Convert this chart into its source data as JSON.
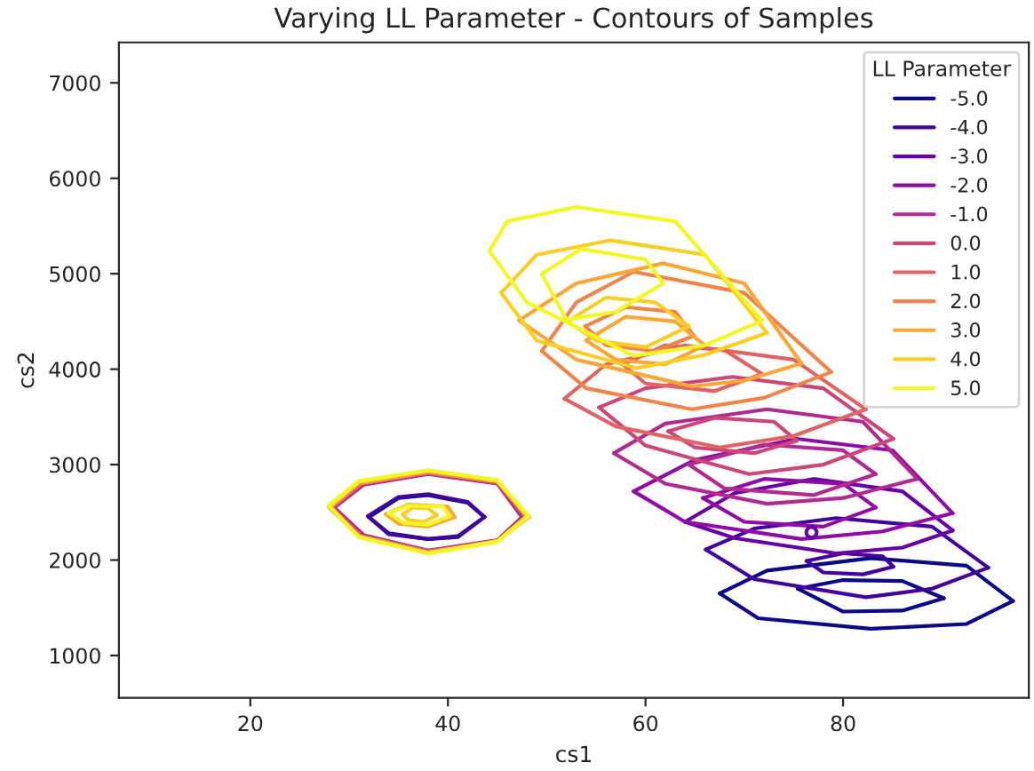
{
  "chart_data": {
    "type": "line",
    "title": "Varying LL Parameter - Contours of Samples",
    "xlabel": "cs1",
    "ylabel": "cs2",
    "legend_title": "LL Parameter",
    "legend": "top right",
    "grid": false,
    "marker": "none",
    "line_style": "solid",
    "xlim": [
      6.7,
      98.8
    ],
    "ylim": [
      557,
      7424
    ],
    "xticks": [
      20,
      40,
      60,
      80
    ],
    "yticks": [
      1000,
      2000,
      3000,
      4000,
      5000,
      6000,
      7000
    ],
    "series": [
      {
        "name": "-5.0",
        "color": "#0d0887",
        "x": [
          67.5,
          72.3,
          82.8,
          92.5,
          97.2
        ],
        "values": [
          1650,
          1890,
          2020,
          1940,
          1570
        ]
      },
      {
        "color": "#0d0887",
        "x": [
          67.5,
          71.4,
          82.8,
          92.5,
          97.2
        ],
        "values": [
          1650,
          1390,
          1280,
          1330,
          1570
        ]
      },
      {
        "color": "#0d0887",
        "x": [
          75.4,
          80,
          86,
          90.2
        ],
        "values": [
          1700,
          1790,
          1780,
          1600
        ]
      },
      {
        "color": "#0d0887",
        "x": [
          75.4,
          80,
          86,
          90.2
        ],
        "values": [
          1700,
          1460,
          1470,
          1600
        ]
      },
      {
        "color": "#0d0887",
        "x": [
          32,
          35,
          38,
          42,
          43.7
        ],
        "values": [
          2450,
          2650,
          2680,
          2600,
          2450
        ]
      },
      {
        "color": "#0d0887",
        "x": [
          32,
          34,
          38,
          41,
          43.7
        ],
        "values": [
          2450,
          2280,
          2220,
          2250,
          2450
        ]
      },
      {
        "name": "-4.0",
        "color": "#41049d",
        "x": [
          66.1,
          71,
          79.3,
          89,
          94.7
        ],
        "values": [
          2110,
          2330,
          2440,
          2350,
          1920
        ]
      },
      {
        "color": "#41049d",
        "x": [
          66.1,
          71,
          82.3,
          89,
          94.7
        ],
        "values": [
          2110,
          1800,
          1610,
          1700,
          1920
        ]
      },
      {
        "color": "#41049d",
        "x": [
          76.3,
          80,
          84,
          85.1
        ],
        "values": [
          1990,
          2070,
          2040,
          1930
        ]
      },
      {
        "color": "#41049d",
        "x": [
          76.3,
          78,
          82,
          85.1
        ],
        "values": [
          1990,
          1870,
          1850,
          1930
        ]
      },
      {
        "color": "#41049d",
        "x": [
          31.9,
          35,
          38,
          42,
          43.7
        ],
        "values": [
          2460,
          2660,
          2690,
          2610,
          2450
        ]
      },
      {
        "color": "#41049d",
        "x": [
          31.9,
          34,
          38,
          41,
          43.7
        ],
        "values": [
          2460,
          2270,
          2220,
          2240,
          2450
        ]
      },
      {
        "name": "-3.0",
        "color": "#6a00a8",
        "x": [
          64,
          69,
          77,
          86,
          91.1
        ],
        "values": [
          2400,
          2700,
          2850,
          2720,
          2310
        ]
      },
      {
        "color": "#6a00a8",
        "x": [
          64,
          69,
          79.3,
          86,
          91.1
        ],
        "values": [
          2400,
          2230,
          2070,
          2130,
          2310
        ]
      },
      {
        "type": "scatter",
        "marker": "circle",
        "color": "#6a00a8",
        "x": [
          76.8
        ],
        "values": [
          2290
        ]
      },
      {
        "name": "-2.0",
        "color": "#8f0da4",
        "x": [
          58.8,
          65,
          75.3,
          85,
          91.1
        ],
        "values": [
          2720,
          3050,
          3270,
          3150,
          2490
        ]
      },
      {
        "color": "#8f0da4",
        "x": [
          58.8,
          64,
          75.8,
          84,
          91.1
        ],
        "values": [
          2720,
          2400,
          2220,
          2300,
          2490
        ]
      },
      {
        "color": "#8f0da4",
        "x": [
          65.8,
          72,
          80,
          83.3
        ],
        "values": [
          2650,
          2850,
          2800,
          2550
        ]
      },
      {
        "color": "#8f0da4",
        "x": [
          65.8,
          70,
          78,
          83.3
        ],
        "values": [
          2650,
          2400,
          2350,
          2550
        ]
      },
      {
        "name": "-1.0",
        "color": "#b12a90",
        "x": [
          56.8,
          62,
          72.3,
          82,
          87.5
        ],
        "values": [
          3120,
          3430,
          3580,
          3450,
          2850
        ]
      },
      {
        "color": "#b12a90",
        "x": [
          56.8,
          62,
          72.3,
          80,
          87.5
        ],
        "values": [
          3120,
          2800,
          2590,
          2650,
          2850
        ]
      },
      {
        "color": "#b12a90",
        "x": [
          64.4,
          72,
          80,
          83.3
        ],
        "values": [
          3000,
          3210,
          3150,
          2900
        ]
      },
      {
        "color": "#b12a90",
        "x": [
          64.4,
          68,
          77,
          83.3
        ],
        "values": [
          3000,
          2750,
          2680,
          2900
        ]
      },
      {
        "color": "#b12a90",
        "x": [
          28.5,
          31.5,
          38,
          45,
          47.5
        ],
        "values": [
          2550,
          2790,
          2900,
          2800,
          2450
        ]
      },
      {
        "color": "#b12a90",
        "x": [
          28.5,
          31.5,
          38,
          45,
          47.5
        ],
        "values": [
          2550,
          2260,
          2100,
          2210,
          2450
        ]
      },
      {
        "name": "0.0",
        "color": "#cc4778",
        "x": [
          55.3,
          60,
          68.8,
          78,
          85.1
        ],
        "values": [
          3600,
          3800,
          3920,
          3800,
          3270
        ]
      },
      {
        "color": "#cc4778",
        "x": [
          55.3,
          60,
          70.5,
          78,
          85.1
        ],
        "values": [
          3600,
          3200,
          2900,
          3000,
          3270
        ]
      },
      {
        "color": "#cc4778",
        "x": [
          62.3,
          67,
          73,
          75.3
        ],
        "values": [
          3350,
          3490,
          3450,
          3250
        ]
      },
      {
        "color": "#cc4778",
        "x": [
          62.3,
          65,
          71,
          75.3
        ],
        "values": [
          3350,
          3180,
          3120,
          3250
        ]
      },
      {
        "color": "#cc4778",
        "x": [
          28.3,
          31.3,
          38,
          45,
          47.8
        ],
        "values": [
          2550,
          2800,
          2910,
          2810,
          2450
        ]
      },
      {
        "color": "#cc4778",
        "x": [
          28.3,
          31.3,
          38,
          45,
          47.8
        ],
        "values": [
          2550,
          2250,
          2090,
          2200,
          2450
        ]
      },
      {
        "name": "1.0",
        "color": "#e16462",
        "x": [
          51.8,
          56,
          64,
          75,
          82.3
        ],
        "values": [
          3690,
          4050,
          4250,
          4100,
          3580
        ]
      },
      {
        "color": "#e16462",
        "x": [
          51.8,
          57,
          67.5,
          75,
          82.3
        ],
        "values": [
          3690,
          3400,
          3180,
          3300,
          3580
        ]
      },
      {
        "color": "#e16462",
        "x": [
          57.7,
          62,
          68,
          71.8
        ],
        "values": [
          4050,
          4250,
          4200,
          3950
        ]
      },
      {
        "color": "#e16462",
        "x": [
          57.7,
          60,
          67,
          71.8
        ],
        "values": [
          4050,
          3850,
          3770,
          3950
        ]
      },
      {
        "color": "#e16462",
        "x": [
          28.2,
          31.2,
          38,
          45,
          48
        ],
        "values": [
          2550,
          2800,
          2920,
          2820,
          2450
        ]
      },
      {
        "color": "#e16462",
        "x": [
          28.2,
          31.2,
          38,
          45,
          48
        ],
        "values": [
          2550,
          2250,
          2090,
          2200,
          2450
        ]
      },
      {
        "name": "2.0",
        "color": "#f2844b",
        "x": [
          49.5,
          53,
          58.8,
          70,
          78.8
        ],
        "values": [
          4190,
          4700,
          5020,
          4800,
          3970
        ]
      },
      {
        "color": "#f2844b",
        "x": [
          49.5,
          54,
          64.7,
          72,
          78.8
        ],
        "values": [
          4190,
          3800,
          3580,
          3700,
          3970
        ]
      },
      {
        "color": "#f2844b",
        "x": [
          53.9,
          58,
          63,
          64.9
        ],
        "values": [
          4450,
          4650,
          4600,
          4350
        ]
      },
      {
        "color": "#f2844b",
        "x": [
          53.9,
          56,
          61,
          64.9
        ],
        "values": [
          4450,
          4250,
          4190,
          4350
        ]
      },
      {
        "color": "#f2844b",
        "x": [
          28,
          31,
          38,
          45,
          48.2
        ],
        "values": [
          2550,
          2800,
          2920,
          2820,
          2450
        ]
      },
      {
        "color": "#f2844b",
        "x": [
          28,
          31,
          38,
          45,
          48.2
        ],
        "values": [
          2550,
          2250,
          2080,
          2200,
          2450
        ]
      },
      {
        "name": "3.0",
        "color": "#fca636",
        "x": [
          47.2,
          53,
          61.8,
          70,
          75.8
        ],
        "values": [
          4510,
          4900,
          5110,
          4900,
          4060
        ]
      },
      {
        "color": "#fca636",
        "x": [
          47.2,
          53,
          64.7,
          70,
          75.8
        ],
        "values": [
          4510,
          4100,
          3820,
          3880,
          4060
        ]
      },
      {
        "color": "#fca636",
        "x": [
          54,
          58,
          63,
          66
        ],
        "values": [
          4300,
          4550,
          4500,
          4250
        ]
      },
      {
        "color": "#fca636",
        "x": [
          54,
          57,
          62,
          66
        ],
        "values": [
          4300,
          4100,
          4050,
          4250
        ]
      },
      {
        "color": "#fca636",
        "x": [
          28,
          31,
          38,
          45,
          48
        ],
        "values": [
          2560,
          2810,
          2930,
          2830,
          2460
        ]
      },
      {
        "color": "#fca636",
        "x": [
          28,
          31,
          38,
          45,
          48
        ],
        "values": [
          2560,
          2250,
          2080,
          2200,
          2460
        ]
      },
      {
        "color": "#fca636",
        "x": [
          33.7,
          36,
          40,
          40.7
        ],
        "values": [
          2480,
          2580,
          2560,
          2450
        ]
      },
      {
        "color": "#fca636",
        "x": [
          33.7,
          35,
          38,
          40.7
        ],
        "values": [
          2480,
          2380,
          2350,
          2450
        ]
      },
      {
        "name": "4.0",
        "color": "#fcce25",
        "x": [
          45.4,
          49,
          56.5,
          66,
          72.3
        ],
        "values": [
          4800,
          5200,
          5350,
          5200,
          4380
        ]
      },
      {
        "color": "#fcce25",
        "x": [
          45.4,
          49,
          59.1,
          66,
          72.3
        ],
        "values": [
          4800,
          4300,
          4010,
          4150,
          4380
        ]
      },
      {
        "color": "#fcce25",
        "x": [
          52.1,
          56,
          61,
          64.4
        ],
        "values": [
          4500,
          4750,
          4700,
          4450
        ]
      },
      {
        "color": "#fcce25",
        "x": [
          52.1,
          55,
          60,
          64.4
        ],
        "values": [
          4500,
          4300,
          4230,
          4450
        ]
      },
      {
        "color": "#fcce25",
        "x": [
          28.1,
          31,
          38,
          45,
          48
        ],
        "values": [
          2560,
          2820,
          2940,
          2830,
          2460
        ]
      },
      {
        "color": "#fcce25",
        "x": [
          28.1,
          31,
          38,
          45,
          48
        ],
        "values": [
          2560,
          2240,
          2070,
          2200,
          2460
        ]
      },
      {
        "color": "#fcce25",
        "x": [
          35.4,
          36.5,
          38,
          38.9
        ],
        "values": [
          2480,
          2550,
          2540,
          2470
        ]
      },
      {
        "color": "#fcce25",
        "x": [
          35.4,
          36,
          37.5,
          38.9
        ],
        "values": [
          2480,
          2420,
          2400,
          2470
        ]
      },
      {
        "name": "5.0",
        "color": "#f0f921",
        "x": [
          44.2,
          46,
          53,
          63,
          71.8
        ],
        "values": [
          5240,
          5550,
          5700,
          5550,
          4510
        ]
      },
      {
        "color": "#f0f921",
        "x": [
          44.2,
          48,
          58.8,
          66,
          71.8
        ],
        "values": [
          5240,
          4700,
          4140,
          4250,
          4510
        ]
      },
      {
        "color": "#f0f921",
        "x": [
          49.5,
          53.5,
          60,
          61.8
        ],
        "values": [
          5000,
          5260,
          5150,
          4900
        ]
      },
      {
        "color": "#f0f921",
        "x": [
          49.5,
          52,
          57,
          61.8
        ],
        "values": [
          5000,
          4520,
          4600,
          4900
        ]
      },
      {
        "color": "#f0f921",
        "x": [
          27.9,
          31,
          38,
          45,
          48.2
        ],
        "values": [
          2570,
          2830,
          2940,
          2840,
          2460
        ]
      },
      {
        "color": "#f0f921",
        "x": [
          27.9,
          31,
          38,
          45,
          48.2
        ],
        "values": [
          2570,
          2240,
          2070,
          2190,
          2460
        ]
      },
      {
        "color": "#f0f921",
        "x": [
          34,
          36,
          39.5,
          40.2
        ],
        "values": [
          2490,
          2570,
          2560,
          2460
        ]
      },
      {
        "color": "#f0f921",
        "x": [
          34,
          35.5,
          38,
          40.2
        ],
        "values": [
          2490,
          2390,
          2370,
          2460
        ]
      }
    ]
  }
}
